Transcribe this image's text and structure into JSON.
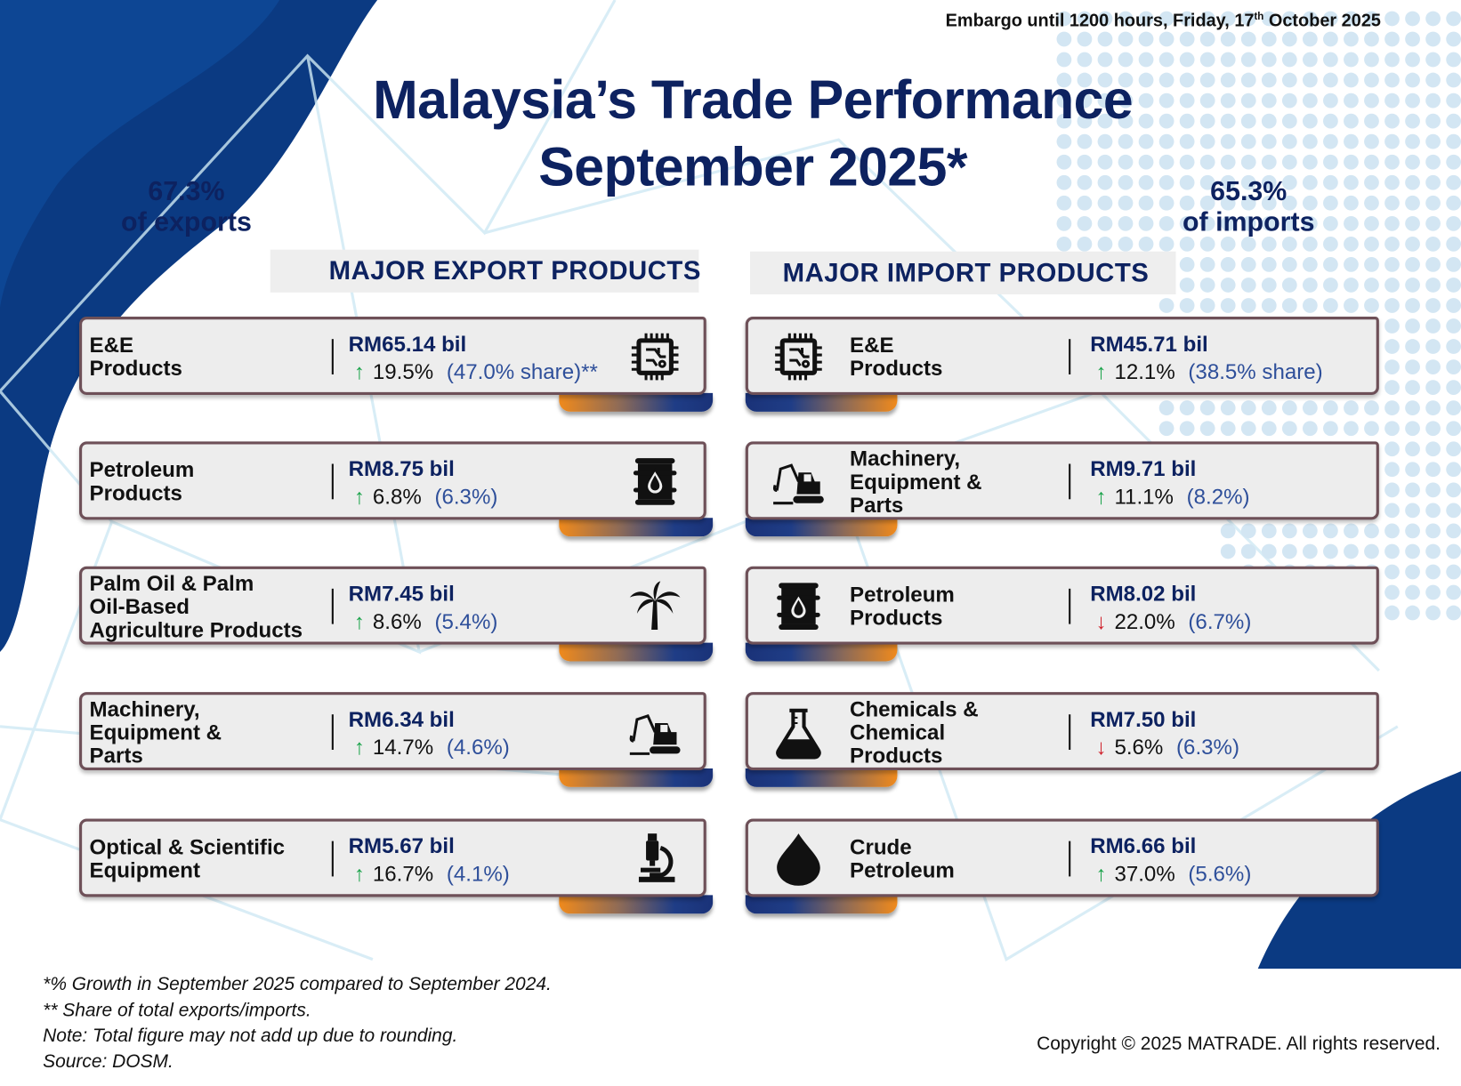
{
  "embargo": {
    "prefix": "Embargo until 1200 hours, Friday, 17",
    "sup": "th",
    "suffix": " October 2025"
  },
  "title": {
    "line1": "Malaysia’s Trade Performance",
    "line2": "September 2025*"
  },
  "exports_share": {
    "value": "67.3%",
    "label": "of exports"
  },
  "imports_share": {
    "value": "65.3%",
    "label": "of imports"
  },
  "colors": {
    "navy": "#0d2260",
    "up": "#1aa34a",
    "down": "#d0202a",
    "share": "#2e4f9a",
    "orange": "#f08a1c"
  },
  "exports": {
    "heading": "MAJOR EXPORT PRODUCTS",
    "items": [
      {
        "name": "E&E\nProducts",
        "value": "RM65.14 bil",
        "direction": "up",
        "growth": "19.5%",
        "share": "(47.0% share)**",
        "icon": "chip-icon"
      },
      {
        "name": "Petroleum\nProducts",
        "value": "RM8.75 bil",
        "direction": "up",
        "growth": "6.8%",
        "share": "(6.3%)",
        "icon": "oil-barrel-icon"
      },
      {
        "name": "Palm Oil & Palm\nOil-Based\nAgriculture Products",
        "value": "RM7.45 bil",
        "direction": "up",
        "growth": "8.6%",
        "share": "(5.4%)",
        "icon": "palm-tree-icon"
      },
      {
        "name": "Machinery,\nEquipment &\nParts",
        "value": "RM6.34 bil",
        "direction": "up",
        "growth": "14.7%",
        "share": "(4.6%)",
        "icon": "excavator-icon"
      },
      {
        "name": "Optical & Scientific\nEquipment",
        "value": "RM5.67 bil",
        "direction": "up",
        "growth": "16.7%",
        "share": "(4.1%)",
        "icon": "microscope-icon"
      }
    ]
  },
  "imports": {
    "heading": "MAJOR IMPORT PRODUCTS",
    "items": [
      {
        "name": "E&E\nProducts",
        "value": "RM45.71 bil",
        "direction": "up",
        "growth": "12.1%",
        "share": "(38.5% share)",
        "icon": "chip-icon"
      },
      {
        "name": "Machinery,\nEquipment &\nParts",
        "value": "RM9.71 bil",
        "direction": "up",
        "growth": "11.1%",
        "share": "(8.2%)",
        "icon": "excavator-icon"
      },
      {
        "name": "Petroleum\nProducts",
        "value": "RM8.02 bil",
        "direction": "down",
        "growth": "22.0%",
        "share": "(6.7%)",
        "icon": "oil-barrel-icon"
      },
      {
        "name": "Chemicals &\nChemical\nProducts",
        "value": "RM7.50 bil",
        "direction": "down",
        "growth": "5.6%",
        "share": "(6.3%)",
        "icon": "flask-icon"
      },
      {
        "name": "Crude\nPetroleum",
        "value": "RM6.66 bil",
        "direction": "up",
        "growth": "37.0%",
        "share": "(5.6%)",
        "icon": "oil-drop-icon"
      }
    ]
  },
  "footnotes": [
    "*% Growth in September 2025 compared to September 2024.",
    "** Share of total exports/imports.",
    "Note: Total figure may not add up due to rounding.",
    "Source: DOSM."
  ],
  "copyright": "Copyright © 2025 MATRADE. All rights reserved."
}
